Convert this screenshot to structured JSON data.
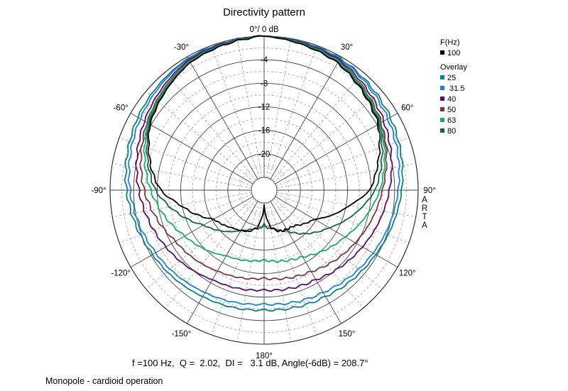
{
  "chart_data": {
    "type": "polar",
    "title": "Directivity pattern",
    "top_label": "0°/ 0 dB",
    "radial_ticks": [
      "-4",
      "-8",
      "-12",
      "-16",
      "-20"
    ],
    "r_values": [
      -4,
      -8,
      -12,
      -16,
      -20
    ],
    "rlim": [
      -24,
      0
    ],
    "angle_labels": [
      {
        "angle": 30,
        "text": "30°"
      },
      {
        "angle": 60,
        "text": "60°"
      },
      {
        "angle": 90,
        "text": "90°"
      },
      {
        "angle": 120,
        "text": "120°"
      },
      {
        "angle": 150,
        "text": "150°"
      },
      {
        "angle": 180,
        "text": "180°"
      },
      {
        "angle": -150,
        "text": "-150°"
      },
      {
        "angle": -120,
        "text": "-120°"
      },
      {
        "angle": -90,
        "text": "-90°"
      },
      {
        "angle": -60,
        "text": "-60°"
      },
      {
        "angle": -30,
        "text": "-30°"
      }
    ],
    "side_text": [
      "A",
      "R",
      "T",
      "A"
    ],
    "legend": {
      "header": "F(Hz)",
      "main": {
        "label": "100",
        "color": "#000000"
      },
      "overlay_header": "Overlay",
      "overlay": [
        {
          "label": "25",
          "color": "#0e7f86"
        },
        {
          "label": " 31.5",
          "color": "#1c82d8"
        },
        {
          "label": "40",
          "color": "#5a0a6e"
        },
        {
          "label": "50",
          "color": "#7a3a40"
        },
        {
          "label": "63",
          "color": "#18b060"
        },
        {
          "label": "80",
          "color": "#145f5a"
        }
      ]
    },
    "series": [
      {
        "name": "100",
        "color": "#000000",
        "angles": [
          0,
          30,
          60,
          80,
          90,
          100,
          120,
          140,
          160,
          170,
          175,
          180,
          185,
          190,
          200,
          220,
          240,
          260,
          270,
          280,
          300,
          330,
          360
        ],
        "values": [
          0,
          -1.2,
          -3.8,
          -6.8,
          -8.2,
          -11.4,
          -16.3,
          -18.3,
          -18.7,
          -19.8,
          -21.4,
          -23.5,
          -21.4,
          -19.8,
          -18.7,
          -17.8,
          -16.3,
          -11.7,
          -8.6,
          -6.8,
          -3.8,
          -1.1,
          0
        ]
      },
      {
        "name": "80",
        "color": "#145f5a",
        "angles": [
          0,
          30,
          60,
          90,
          120,
          150,
          165,
          175,
          180,
          185,
          195,
          210,
          240,
          270,
          300,
          330,
          360
        ],
        "values": [
          0,
          -1.1,
          -3.6,
          -7.3,
          -13.4,
          -18.1,
          -19.4,
          -19.7,
          -20.4,
          -19.7,
          -19.4,
          -18.3,
          -14.3,
          -7.7,
          -3.6,
          -1.1,
          0
        ]
      },
      {
        "name": "63",
        "color": "#18b060",
        "angles": [
          0,
          30,
          60,
          90,
          120,
          150,
          180,
          210,
          240,
          270,
          300,
          330,
          360
        ],
        "values": [
          0,
          -0.9,
          -3.4,
          -6.5,
          -10.3,
          -13.1,
          -14.3,
          -13.3,
          -10.6,
          -6.9,
          -3.4,
          -0.9,
          0
        ]
      },
      {
        "name": "50",
        "color": "#7a3a40",
        "angles": [
          0,
          30,
          60,
          90,
          120,
          150,
          180,
          210,
          240,
          270,
          300,
          330,
          360
        ],
        "values": [
          0,
          -0.8,
          -3.2,
          -6.1,
          -8.3,
          -10.2,
          -11.2,
          -10.3,
          -8.8,
          -5.8,
          -3.2,
          -0.8,
          0
        ]
      },
      {
        "name": "40",
        "color": "#5a0a6e",
        "angles": [
          0,
          30,
          60,
          90,
          120,
          150,
          180,
          210,
          240,
          270,
          300,
          330,
          360
        ],
        "values": [
          0,
          -0.6,
          -2.7,
          -4.9,
          -6.9,
          -8.6,
          -9.2,
          -8.6,
          -6.9,
          -4.9,
          -2.7,
          -0.6,
          0
        ]
      },
      {
        "name": "31.5",
        "color": "#1c82d8",
        "angles": [
          0,
          30,
          60,
          90,
          120,
          150,
          180,
          210,
          240,
          270,
          300,
          330,
          360
        ],
        "values": [
          0,
          -0.4,
          -1.9,
          -3.4,
          -4.8,
          -6.1,
          -6.8,
          -6.1,
          -4.9,
          -3.4,
          -1.9,
          -0.4,
          0
        ]
      },
      {
        "name": "25",
        "color": "#0e7f86",
        "angles": [
          0,
          30,
          60,
          90,
          120,
          150,
          180,
          210,
          240,
          270,
          300,
          330,
          360
        ],
        "values": [
          0,
          -0.3,
          -1.4,
          -2.8,
          -4.3,
          -5.3,
          -5.8,
          -5.3,
          -4.3,
          -2.8,
          -1.4,
          -0.3,
          0
        ]
      }
    ]
  },
  "summary": "f =100 Hz,  Q =  2.02,  DI =   3.1 dB, Angle(-6dB) = 208.7°",
  "caption": "Monopole - cardioid operation"
}
